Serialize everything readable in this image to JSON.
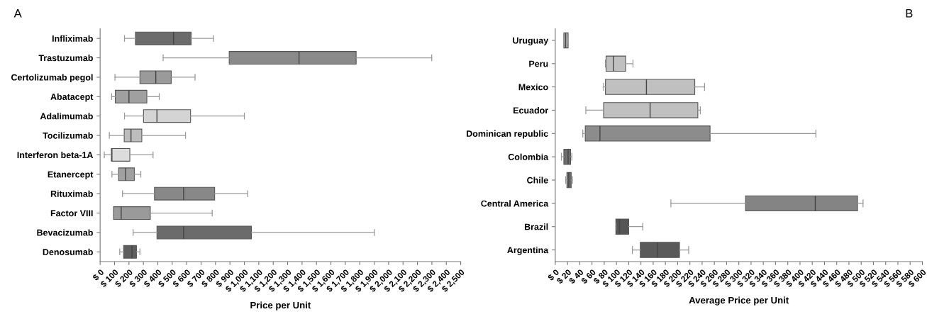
{
  "chart_data": [
    {
      "type": "box",
      "annotations": [
        "A"
      ],
      "xlabel": "Price per Unit",
      "orientation": "horizontal",
      "grid": false,
      "categories": [
        "Infliximab",
        "Trastuzumab",
        "Certolizumab pegol",
        "Abatacept",
        "Adalimumab",
        "Tocilizumab",
        "Interferon beta-1A",
        "Etanercept",
        "Rituximab",
        "Factor VIII",
        "Bevacizumab",
        "Denosumab"
      ],
      "colors": [
        "#6b6b6b",
        "#8a8a8a",
        "#9a9a9a",
        "#a0a0a0",
        "#d4d4d4",
        "#bdbdbd",
        "#dcdcdc",
        "#a0a0a0",
        "#888888",
        "#9a9a9a",
        "#6b6b6b",
        "#5e5e5e"
      ],
      "boxes": [
        {
          "low": 169,
          "q1": 245,
          "median": 509,
          "q3": 631,
          "high": 786
        },
        {
          "low": 437,
          "q1": 895,
          "median": 1379,
          "q3": 1775,
          "high": 2299
        },
        {
          "low": 103,
          "q1": 276,
          "median": 386,
          "q3": 493,
          "high": 658
        },
        {
          "low": 80,
          "q1": 105,
          "median": 200,
          "q3": 324,
          "high": 410
        },
        {
          "low": 169,
          "q1": 301,
          "median": 394,
          "q3": 627,
          "high": 1000
        },
        {
          "low": 64,
          "q1": 167,
          "median": 214,
          "q3": 289,
          "high": 592
        },
        {
          "low": 29,
          "q1": 78,
          "median": 82,
          "q3": 206,
          "high": 367
        },
        {
          "low": 82,
          "q1": 128,
          "median": 177,
          "q3": 237,
          "high": 282
        },
        {
          "low": 155,
          "q1": 377,
          "median": 579,
          "q3": 794,
          "high": 1023
        },
        {
          "low": 91,
          "q1": 93,
          "median": 146,
          "q3": 348,
          "high": 777
        },
        {
          "low": 229,
          "q1": 394,
          "median": 579,
          "q3": 1049,
          "high": 1901
        },
        {
          "low": 136,
          "q1": 163,
          "median": 221,
          "q3": 252,
          "high": 276
        }
      ],
      "xlim": [
        0,
        2500
      ],
      "xticks": [
        {
          "value": 0,
          "label": "$ 0"
        },
        {
          "value": 100,
          "label": "$ 100"
        },
        {
          "value": 200,
          "label": "$ 200"
        },
        {
          "value": 300,
          "label": "$ 300"
        },
        {
          "value": 400,
          "label": "$ 400"
        },
        {
          "value": 500,
          "label": "$ 500"
        },
        {
          "value": 600,
          "label": "$ 600"
        },
        {
          "value": 700,
          "label": "$ 700"
        },
        {
          "value": 800,
          "label": "$ 800"
        },
        {
          "value": 900,
          "label": "$ 900"
        },
        {
          "value": 1000,
          "label": "$ 1,000"
        },
        {
          "value": 1100,
          "label": "$ 1,100"
        },
        {
          "value": 1200,
          "label": "$ 1,200"
        },
        {
          "value": 1300,
          "label": "$ 1,300"
        },
        {
          "value": 1400,
          "label": "$ 1,400"
        },
        {
          "value": 1500,
          "label": "$ 1,500"
        },
        {
          "value": 1600,
          "label": "$ 1,600"
        },
        {
          "value": 1700,
          "label": "$ 1,700"
        },
        {
          "value": 1800,
          "label": "$ 1,800"
        },
        {
          "value": 1900,
          "label": "$ 1,900"
        },
        {
          "value": 2000,
          "label": "$ 2,000"
        },
        {
          "value": 2100,
          "label": "$ 2,100"
        },
        {
          "value": 2200,
          "label": "$ 2,200"
        },
        {
          "value": 2300,
          "label": "$ 2,300"
        },
        {
          "value": 2400,
          "label": "$ 2,400"
        },
        {
          "value": 2500,
          "label": "$ 2,500"
        }
      ]
    },
    {
      "type": "box",
      "annotations": [
        "B"
      ],
      "xlabel": "Average Price per Unit",
      "orientation": "horizontal",
      "grid": false,
      "categories": [
        "Uruguay",
        "Peru",
        "Mexico",
        "Ecuador",
        "Dominican republic",
        "Colombia",
        "Chile",
        "Central America",
        "Brazil",
        "Argentina"
      ],
      "colors": [
        "#b0b0b0",
        "#c0c0c0",
        "#c0c0c0",
        "#c0c0c0",
        "#8c8c8c",
        "#6e6e6e",
        "#6e6e6e",
        "#848484",
        "#555555",
        "#5a5a5a"
      ],
      "boxes": [
        {
          "low": 14,
          "q1": 14,
          "median": 17,
          "q3": 21,
          "high": 21
        },
        {
          "low": 82,
          "q1": 83,
          "median": 95,
          "q3": 115,
          "high": 127
        },
        {
          "low": 79,
          "q1": 82,
          "median": 149,
          "q3": 228,
          "high": 244
        },
        {
          "low": 50,
          "q1": 79,
          "median": 155,
          "q3": 233,
          "high": 237
        },
        {
          "low": 45,
          "q1": 49,
          "median": 73,
          "q3": 253,
          "high": 426
        },
        {
          "low": 10,
          "q1": 14,
          "median": 21,
          "q3": 25,
          "high": 27
        },
        {
          "low": 17,
          "q1": 19,
          "median": 22,
          "q3": 26,
          "high": 28
        },
        {
          "low": 189,
          "q1": 311,
          "median": 425,
          "q3": 494,
          "high": 503
        },
        {
          "low": 99,
          "q1": 99,
          "median": 105,
          "q3": 120,
          "high": 143
        },
        {
          "low": 126,
          "q1": 139,
          "median": 167,
          "q3": 203,
          "high": 218
        }
      ],
      "xlim": [
        0,
        600
      ],
      "xticks": [
        {
          "value": 0,
          "label": "$ 0"
        },
        {
          "value": 20,
          "label": "$ 20"
        },
        {
          "value": 40,
          "label": "$ 40"
        },
        {
          "value": 60,
          "label": "$ 60"
        },
        {
          "value": 80,
          "label": "$ 80"
        },
        {
          "value": 100,
          "label": "$ 100"
        },
        {
          "value": 120,
          "label": "$ 120"
        },
        {
          "value": 140,
          "label": "$ 140"
        },
        {
          "value": 160,
          "label": "$ 160"
        },
        {
          "value": 180,
          "label": "$ 180"
        },
        {
          "value": 200,
          "label": "$ 200"
        },
        {
          "value": 220,
          "label": "$ 220"
        },
        {
          "value": 240,
          "label": "$ 240"
        },
        {
          "value": 260,
          "label": "$ 260"
        },
        {
          "value": 280,
          "label": "$ 280"
        },
        {
          "value": 300,
          "label": "$ 300"
        },
        {
          "value": 320,
          "label": "$ 320"
        },
        {
          "value": 340,
          "label": "$ 340"
        },
        {
          "value": 360,
          "label": "$ 360"
        },
        {
          "value": 380,
          "label": "$ 380"
        },
        {
          "value": 400,
          "label": "$ 400"
        },
        {
          "value": 420,
          "label": "$ 420"
        },
        {
          "value": 440,
          "label": "$ 440"
        },
        {
          "value": 460,
          "label": "$ 460"
        },
        {
          "value": 480,
          "label": "$ 480"
        },
        {
          "value": 500,
          "label": "$ 500"
        },
        {
          "value": 520,
          "label": "$ 520"
        },
        {
          "value": 540,
          "label": "$ 540"
        },
        {
          "value": 560,
          "label": "$ 560"
        },
        {
          "value": 580,
          "label": "$ 580"
        },
        {
          "value": 600,
          "label": "$ 600"
        }
      ]
    }
  ]
}
